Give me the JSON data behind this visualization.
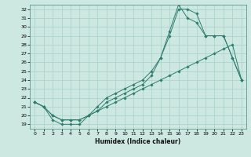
{
  "xlabel": "Humidex (Indice chaleur)",
  "background_color": "#cce8e0",
  "line_color": "#2e7d6e",
  "grid_color": "#a8d0c8",
  "xlim": [
    -0.5,
    23.5
  ],
  "ylim": [
    18.5,
    32.5
  ],
  "xticks": [
    0,
    1,
    2,
    3,
    4,
    5,
    6,
    7,
    8,
    9,
    10,
    11,
    12,
    13,
    14,
    15,
    16,
    17,
    18,
    19,
    20,
    21,
    22,
    23
  ],
  "yticks": [
    19,
    20,
    21,
    22,
    23,
    24,
    25,
    26,
    27,
    28,
    29,
    30,
    31,
    32
  ],
  "curve1_x": [
    0,
    1,
    2,
    3,
    4,
    5,
    6,
    7,
    8,
    9,
    10,
    11,
    12,
    13,
    14,
    15,
    16,
    17,
    18,
    19,
    20,
    21,
    22,
    23
  ],
  "curve1_y": [
    21.5,
    21.0,
    19.5,
    19.0,
    19.0,
    19.0,
    20.0,
    20.5,
    21.5,
    22.0,
    22.5,
    23.0,
    23.5,
    24.5,
    26.5,
    29.0,
    32.0,
    32.0,
    31.5,
    29.0,
    29.0,
    29.0,
    26.5,
    24.0
  ],
  "curve2_x": [
    0,
    1,
    2,
    3,
    4,
    5,
    6,
    7,
    8,
    9,
    10,
    11,
    12,
    13,
    14,
    15,
    16,
    17,
    18,
    19,
    20,
    21,
    22,
    23
  ],
  "curve2_y": [
    21.5,
    21.0,
    20.0,
    19.5,
    19.5,
    19.5,
    20.0,
    21.0,
    22.0,
    22.5,
    23.0,
    23.5,
    24.0,
    25.0,
    26.5,
    29.5,
    32.5,
    31.0,
    30.5,
    29.0,
    29.0,
    29.0,
    26.5,
    24.0
  ],
  "curve3_x": [
    0,
    1,
    2,
    3,
    4,
    5,
    6,
    7,
    8,
    9,
    10,
    11,
    12,
    13,
    14,
    15,
    16,
    17,
    18,
    19,
    20,
    21,
    22,
    23
  ],
  "curve3_y": [
    21.5,
    21.0,
    20.0,
    19.5,
    19.5,
    19.5,
    20.0,
    20.5,
    21.0,
    21.5,
    22.0,
    22.5,
    23.0,
    23.5,
    24.0,
    24.5,
    25.0,
    25.5,
    26.0,
    26.5,
    27.0,
    27.5,
    28.0,
    24.0
  ]
}
